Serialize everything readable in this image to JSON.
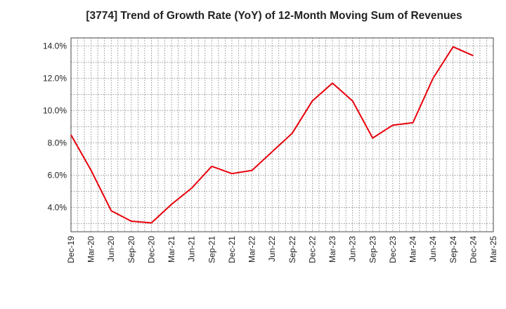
{
  "chart_data": {
    "type": "line",
    "title": "[3774]  Trend of Growth Rate (YoY) of 12-Month Moving Sum of Revenues",
    "xlabel": "",
    "ylabel": "",
    "x_tick_labels": [
      "Dec-19",
      "Mar-20",
      "Jun-20",
      "Sep-20",
      "Dec-20",
      "Mar-21",
      "Jun-21",
      "Sep-21",
      "Dec-21",
      "Mar-22",
      "Jun-22",
      "Sep-22",
      "Dec-22",
      "Mar-23",
      "Jun-23",
      "Sep-23",
      "Dec-23",
      "Mar-24",
      "Jun-24",
      "Sep-24",
      "Dec-24",
      "Mar-25"
    ],
    "ylim": [
      2.5,
      14.5
    ],
    "y_ticks": [
      4.0,
      6.0,
      8.0,
      10.0,
      12.0,
      14.0
    ],
    "y_tick_labels": [
      "4.0%",
      "6.0%",
      "8.0%",
      "10.0%",
      "12.0%",
      "14.0%"
    ],
    "grid": true,
    "series": [
      {
        "color": "#e8000b",
        "x": [
          "Dec-19",
          "Mar-20",
          "Jun-20",
          "Sep-20",
          "Dec-20",
          "Mar-21",
          "Jun-21",
          "Sep-21",
          "Dec-21",
          "Mar-22",
          "Jun-22",
          "Sep-22",
          "Dec-22",
          "Mar-23",
          "Jun-23",
          "Sep-23",
          "Dec-23",
          "Mar-24",
          "Jun-24",
          "Sep-24",
          "Dec-24"
        ],
        "values": [
          8.5,
          6.3,
          3.8,
          3.15,
          3.05,
          4.2,
          5.2,
          6.55,
          6.1,
          6.3,
          7.45,
          8.6,
          10.6,
          11.7,
          10.6,
          8.3,
          9.1,
          9.25,
          12.0,
          13.95,
          13.4
        ]
      }
    ]
  }
}
